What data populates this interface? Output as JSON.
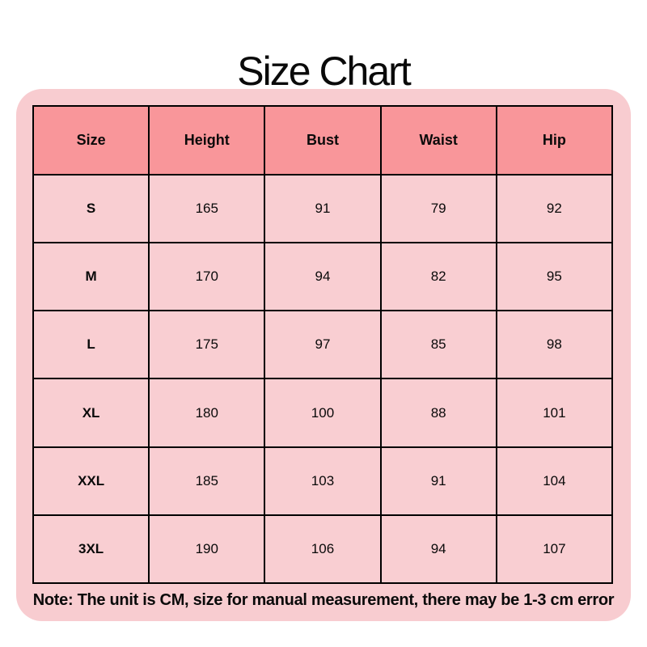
{
  "title": "Size Chart",
  "note": "Note: The unit is CM, size for manual measurement, there may be 1-3 cm error",
  "colors": {
    "panel_bg": "#F8CCD0",
    "header_bg": "#F9969A",
    "cell_bg": "#F9CED2",
    "border": "#000000",
    "text": "#0A0A0A"
  },
  "chart_data": {
    "type": "table",
    "title": "Size Chart",
    "columns": [
      "Size",
      "Height",
      "Bust",
      "Waist",
      "Hip"
    ],
    "rows": [
      [
        "S",
        165,
        91,
        79,
        92
      ],
      [
        "M",
        170,
        94,
        82,
        95
      ],
      [
        "L",
        175,
        97,
        85,
        98
      ],
      [
        "XL",
        180,
        100,
        88,
        101
      ],
      [
        "XXL",
        185,
        103,
        91,
        104
      ],
      [
        "3XL",
        190,
        106,
        94,
        107
      ]
    ],
    "unit": "CM",
    "note": "Note: The unit is CM, size for manual measurement, there may be 1-3 cm error",
    "layout": {
      "header_row_highlighted": true,
      "grid": true
    }
  }
}
